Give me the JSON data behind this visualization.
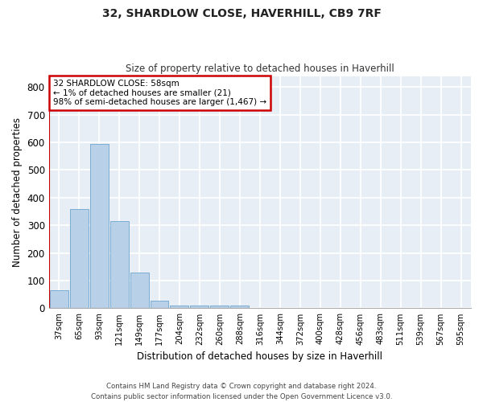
{
  "title": "32, SHARDLOW CLOSE, HAVERHILL, CB9 7RF",
  "subtitle": "Size of property relative to detached houses in Haverhill",
  "xlabel": "Distribution of detached houses by size in Haverhill",
  "ylabel": "Number of detached properties",
  "bar_labels": [
    "37sqm",
    "65sqm",
    "93sqm",
    "121sqm",
    "149sqm",
    "177sqm",
    "204sqm",
    "232sqm",
    "260sqm",
    "288sqm",
    "316sqm",
    "344sqm",
    "372sqm",
    "400sqm",
    "428sqm",
    "456sqm",
    "483sqm",
    "511sqm",
    "539sqm",
    "567sqm",
    "595sqm"
  ],
  "bar_values": [
    65,
    358,
    595,
    315,
    130,
    28,
    10,
    10,
    10,
    10,
    0,
    0,
    0,
    0,
    0,
    0,
    0,
    0,
    0,
    0,
    0
  ],
  "bar_color": "#b8d0e8",
  "bar_edge_color": "#7aadd4",
  "annotation_text_line1": "32 SHARDLOW CLOSE: 58sqm",
  "annotation_text_line2": "← 1% of detached houses are smaller (21)",
  "annotation_text_line3": "98% of semi-detached houses are larger (1,467) →",
  "annotation_box_facecolor": "#ffffff",
  "annotation_box_edgecolor": "#cc0000",
  "marker_line_color": "#cc0000",
  "ylim": [
    0,
    840
  ],
  "yticks": [
    0,
    100,
    200,
    300,
    400,
    500,
    600,
    700,
    800
  ],
  "fig_background": "#ffffff",
  "axes_background": "#e8eef5",
  "grid_color": "#ffffff",
  "footer_line1": "Contains HM Land Registry data © Crown copyright and database right 2024.",
  "footer_line2": "Contains public sector information licensed under the Open Government Licence v3.0."
}
